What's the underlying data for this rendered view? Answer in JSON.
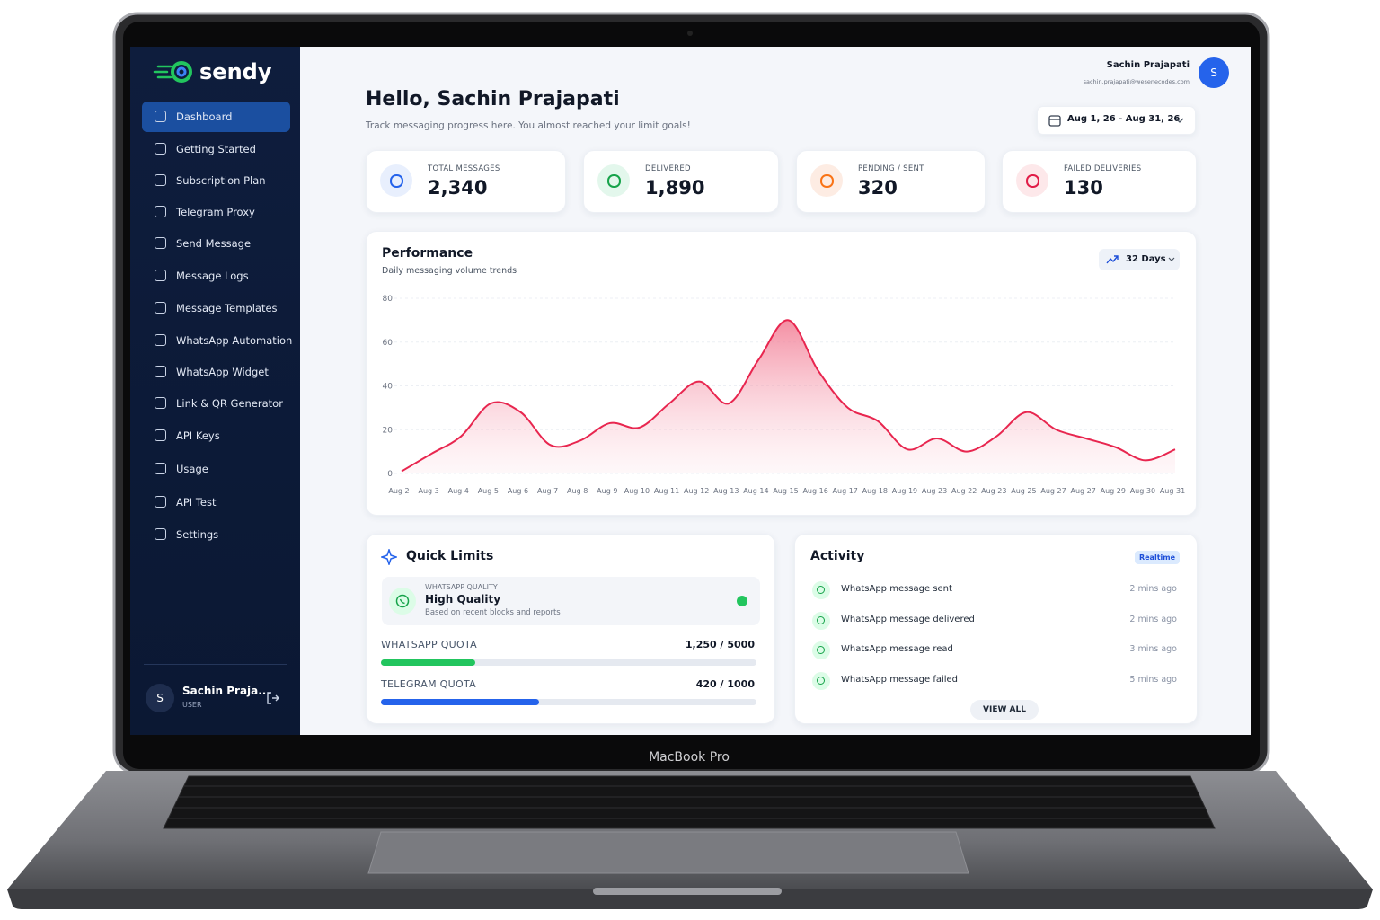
{
  "brand": "sendy",
  "device_label": "MacBook Pro",
  "sidebar": {
    "items": [
      "Dashboard",
      "Getting Started",
      "Subscription Plan",
      "Telegram Proxy",
      "Send Message",
      "Message Logs",
      "Message Templates",
      "WhatsApp Automation",
      "WhatsApp Widget",
      "Link & QR Generator",
      "API Keys",
      "Usage",
      "API Test",
      "Settings"
    ],
    "user": {
      "avatar": "S",
      "name": "Sachin Praja...",
      "role": "USER"
    }
  },
  "header": {
    "user_name": "Sachin Prajapati",
    "user_email": "sachin.prajapati@wesenecodes.com",
    "avatar": "S",
    "greeting": "Hello, Sachin Prajapati",
    "subtitle": "Track messaging progress here. You almost reached your limit goals!",
    "date_range": "Aug 1, 26 - Aug 31, 26"
  },
  "stats": [
    {
      "label": "TOTAL MESSAGES",
      "value": "2,340"
    },
    {
      "label": "DELIVERED",
      "value": "1,890"
    },
    {
      "label": "PENDING / SENT",
      "value": "320"
    },
    {
      "label": "FAILED DELIVERIES",
      "value": "130"
    }
  ],
  "chart_data": {
    "type": "area",
    "title": "Performance",
    "subtitle": "Daily messaging volume trends",
    "range_button": "32 Days",
    "categories": [
      "Aug 2",
      "Aug 3",
      "Aug 4",
      "Aug 5",
      "Aug 6",
      "Aug 7",
      "Aug 8",
      "Aug 9",
      "Aug 10",
      "Aug 11",
      "Aug 12",
      "Aug 13",
      "Aug 14",
      "Aug 15",
      "Aug 16",
      "Aug 17",
      "Aug 18",
      "Aug 19",
      "Aug 23",
      "Aug 22",
      "Aug 23",
      "Aug 25",
      "Aug 27",
      "Aug 27",
      "Aug 29",
      "Aug 30",
      "Aug 31"
    ],
    "values": [
      1,
      9,
      17,
      32,
      28,
      13,
      15,
      23,
      21,
      32,
      42,
      32,
      52,
      70,
      47,
      30,
      24,
      11,
      16,
      10,
      17,
      28,
      20,
      16,
      12,
      6,
      11
    ],
    "color": "#e8264f",
    "ylim": [
      0,
      80
    ],
    "yticks": [
      0,
      20,
      40,
      60,
      80
    ],
    "grid": true
  },
  "quick_limits": {
    "title": "Quick Limits",
    "quality": {
      "label": "WHATSAPP QUALITY",
      "value": "High Quality",
      "note": "Based on recent blocks and reports"
    },
    "quotas": [
      {
        "name": "WHATSAPP QUOTA",
        "used": 1250,
        "limit": 5000,
        "label": "1,250 / 5000",
        "color": "#22c55e"
      },
      {
        "name": "TELEGRAM QUOTA",
        "used": 420,
        "limit": 1000,
        "label": "420 / 1000",
        "color": "#2563eb"
      }
    ]
  },
  "activity": {
    "title": "Activity",
    "badge": "Realtime",
    "items": [
      {
        "text": "WhatsApp message sent",
        "time": "2 mins ago"
      },
      {
        "text": "WhatsApp message delivered",
        "time": "2 mins ago"
      },
      {
        "text": "WhatsApp message read",
        "time": "3 mins ago"
      },
      {
        "text": "WhatsApp message failed",
        "time": "5 mins ago"
      }
    ],
    "button": "VIEW ALL"
  }
}
